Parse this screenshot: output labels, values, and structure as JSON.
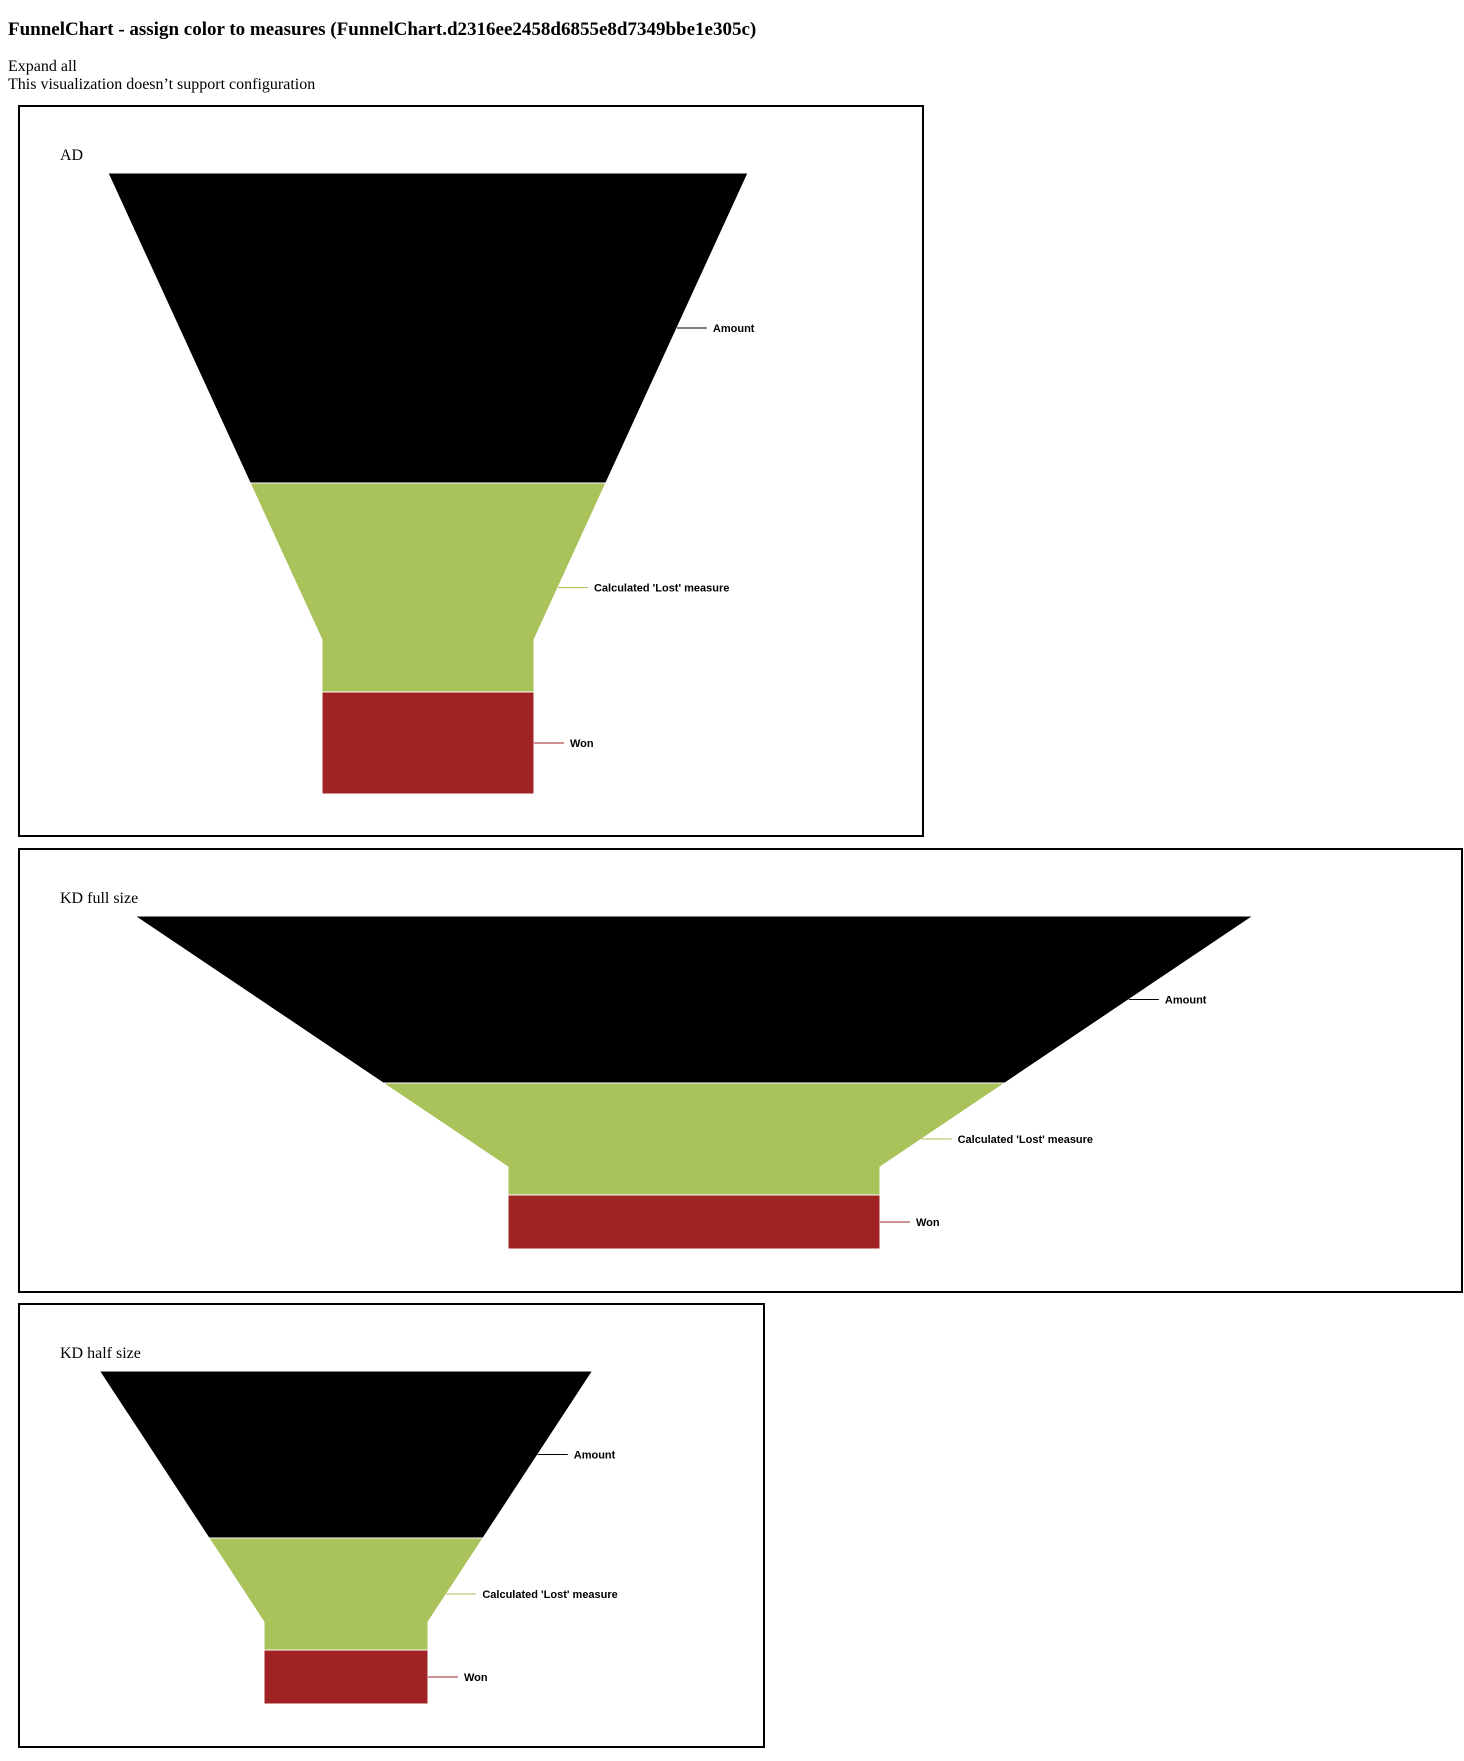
{
  "page": {
    "title": "FunnelChart - assign color to measures (FunnelChart.d2316ee2458d6855e8d7349bbe1e305c)",
    "expand_all": "Expand all",
    "config_note": "This visualization doesn’t support configuration"
  },
  "colors": {
    "Amount": "#000000",
    "Calculated 'Lost' measure": "#a9c25a",
    "Won": "#a02323",
    "panel_border": "#000000"
  },
  "panels": [
    {
      "title": "AD"
    },
    {
      "title": "KD full size"
    },
    {
      "title": "KD half size"
    }
  ],
  "chart_data": [
    {
      "type": "funnel",
      "title": "AD",
      "categories": [
        "Amount",
        "Calculated 'Lost' measure",
        "Won"
      ],
      "values": [
        3,
        2,
        1
      ],
      "colors": [
        "#000000",
        "#a9c25a",
        "#a02323"
      ],
      "data_labels": [
        "Amount",
        "Calculated 'Lost' measure",
        "Won"
      ],
      "legend": "none"
    },
    {
      "type": "funnel",
      "title": "KD full size",
      "categories": [
        "Amount",
        "Calculated 'Lost' measure",
        "Won"
      ],
      "values": [
        3,
        2,
        1
      ],
      "colors": [
        "#000000",
        "#a9c25a",
        "#a02323"
      ],
      "data_labels": [
        "Amount",
        "Calculated 'Lost' measure",
        "Won"
      ],
      "legend": "none"
    },
    {
      "type": "funnel",
      "title": "KD half size",
      "categories": [
        "Amount",
        "Calculated 'Lost' measure",
        "Won"
      ],
      "values": [
        3,
        2,
        1
      ],
      "colors": [
        "#000000",
        "#a9c25a",
        "#a02323"
      ],
      "data_labels": [
        "Amount",
        "Calculated 'Lost' measure",
        "Won"
      ],
      "legend": "none"
    }
  ]
}
